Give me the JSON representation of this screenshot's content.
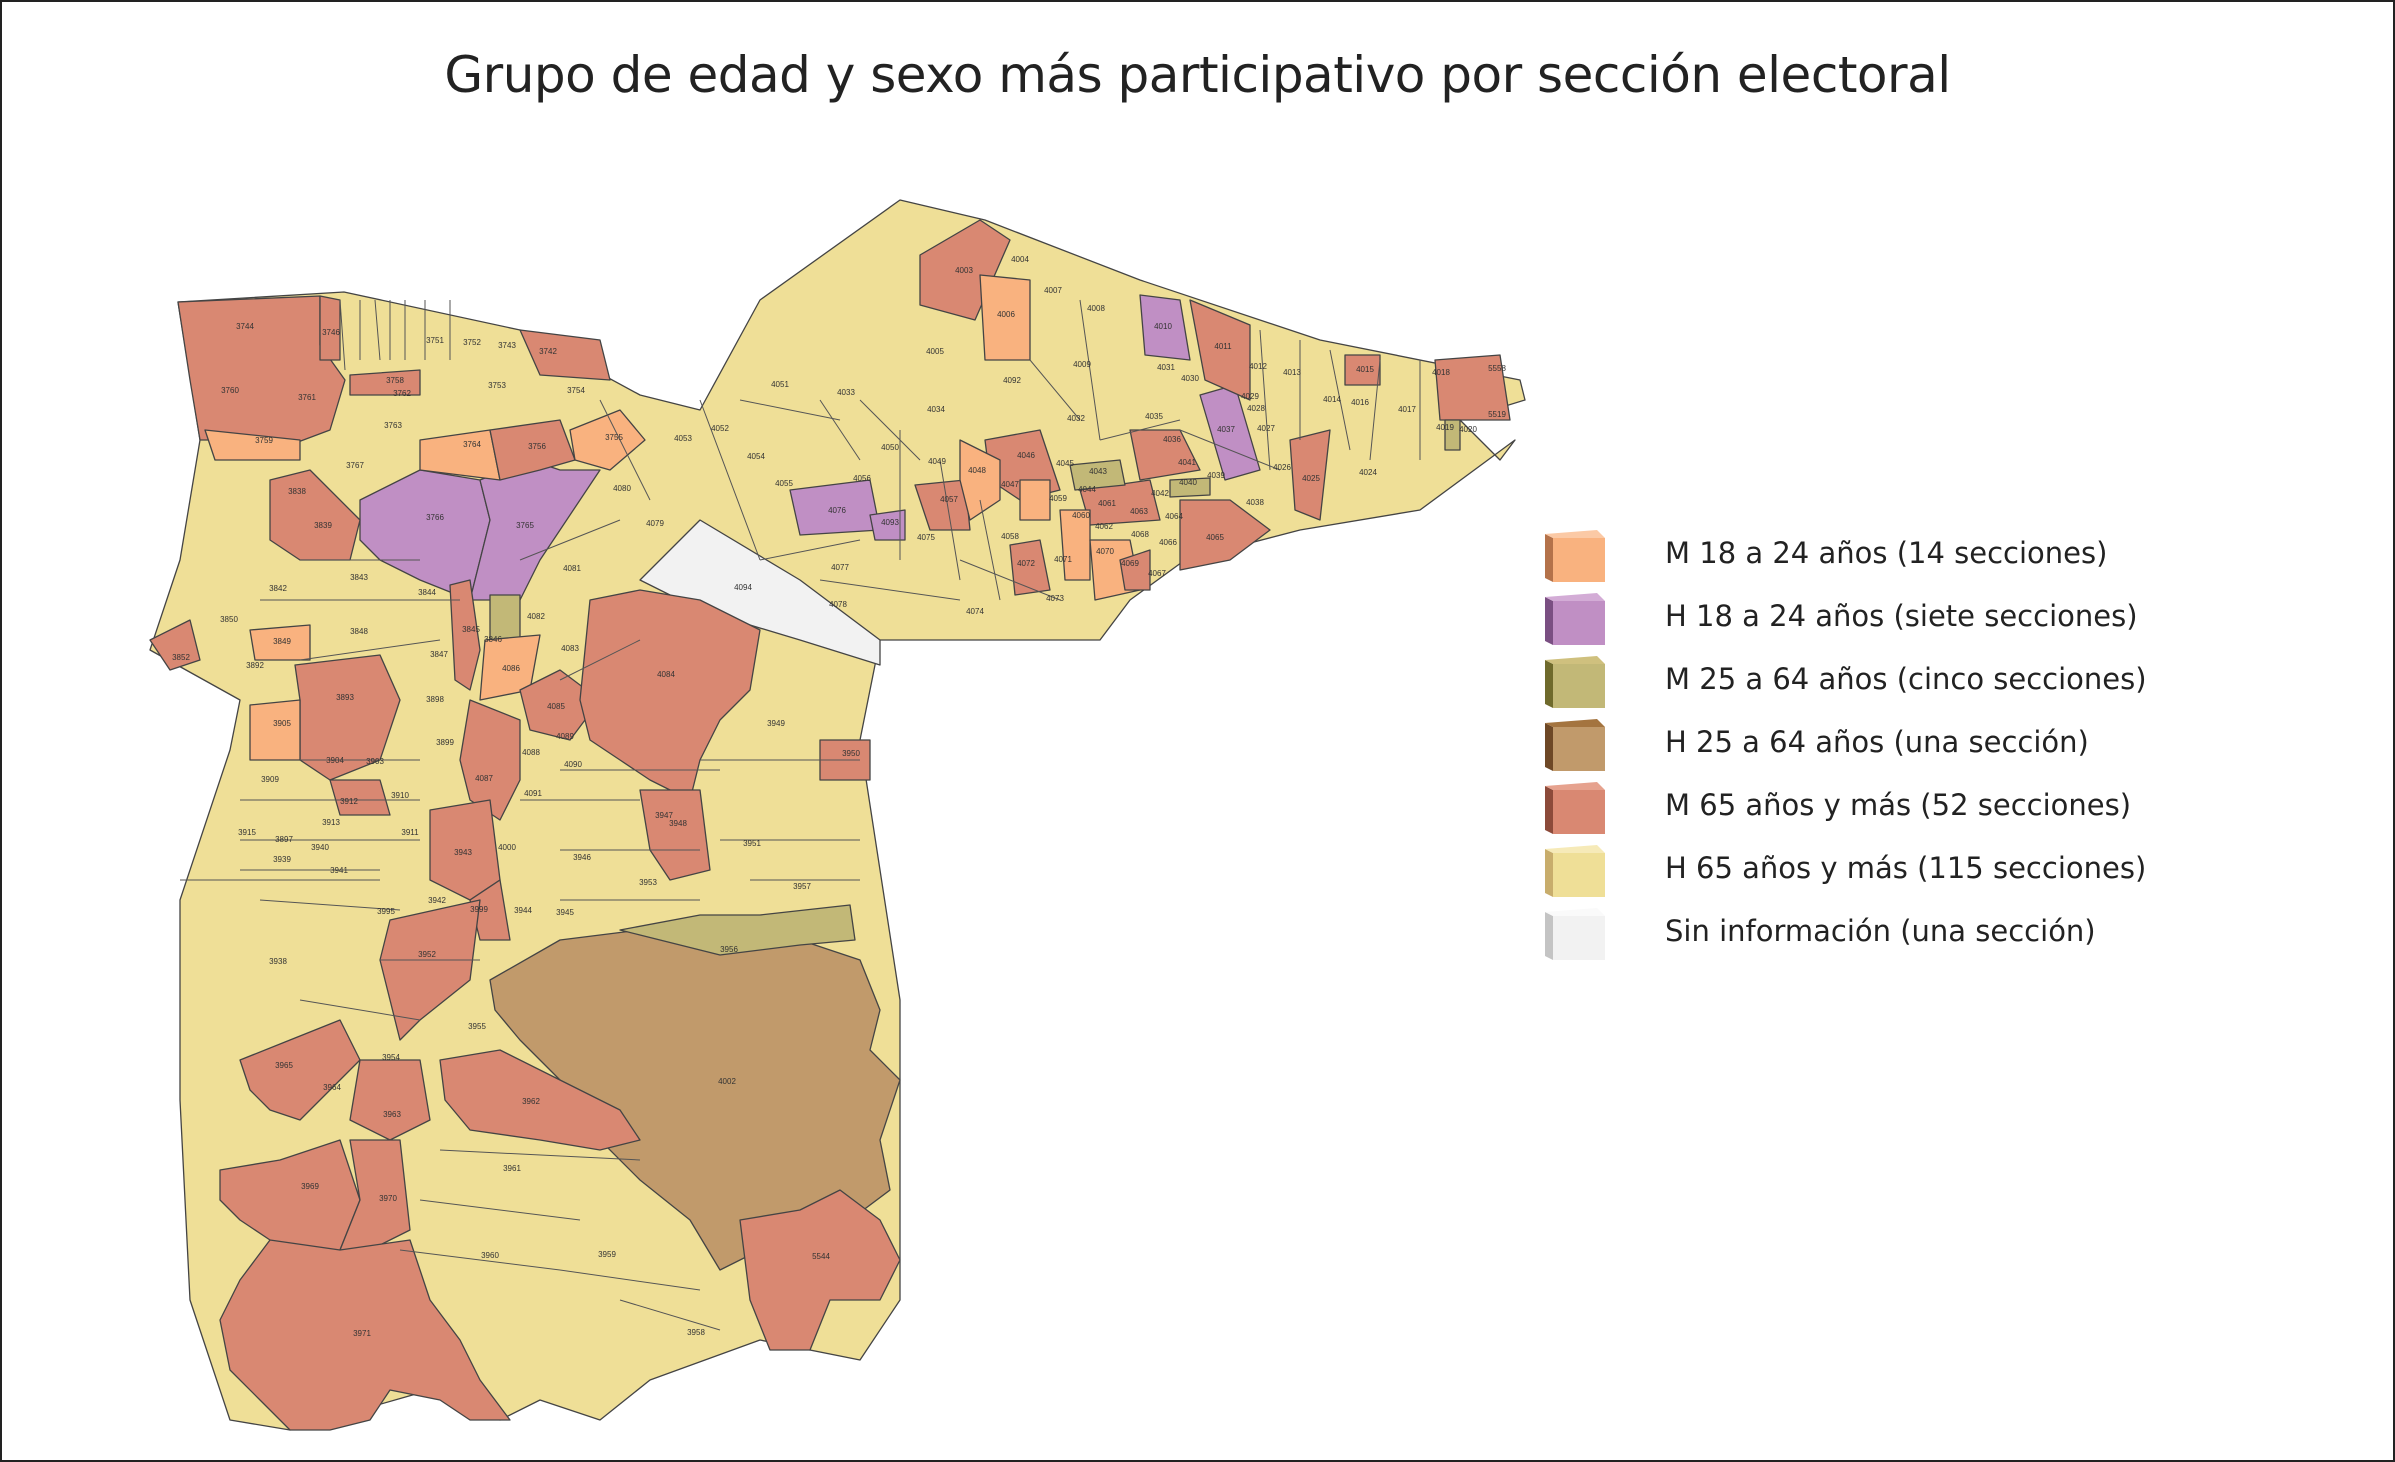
{
  "title": "Grupo de edad y sexo más participativo por sección electoral",
  "colors": {
    "m_18_24": "#f9b27f",
    "h_18_24": "#c08fc4",
    "m_25_64": "#c2b877",
    "h_25_64": "#c19a6b",
    "m_65": "#d98872",
    "h_65": "#efdf97",
    "sin_info": "#f2f2f2",
    "border": "#444444"
  },
  "legend": [
    {
      "key": "m_18_24",
      "label": "M 18 a 24 años (14 secciones)",
      "color": "#f9b27f",
      "side": "#b4724a",
      "top": "#fbc9a5"
    },
    {
      "key": "h_18_24",
      "label": "H 18 a 24 años (siete secciones)",
      "color": "#c08fc4",
      "side": "#7a4f82",
      "top": "#d3acd6"
    },
    {
      "key": "m_25_64",
      "label": "M 25 a 64 años (cinco secciones)",
      "color": "#c2b877",
      "side": "#6f6a2c",
      "top": "#cfc07e"
    },
    {
      "key": "h_25_64",
      "label": "H 25 a 64 años (una sección)",
      "color": "#c19a6b",
      "side": "#6e4826",
      "top": "#a4743f"
    },
    {
      "key": "m_65",
      "label": "M 65 años y más (52 secciones)",
      "color": "#d98872",
      "side": "#8c4a3a",
      "top": "#e6a28e"
    },
    {
      "key": "h_65",
      "label": "H 65 años y más (115 secciones)",
      "color": "#efdf97",
      "side": "#c8ad6c",
      "top": "#f6eab8"
    },
    {
      "key": "sin_info",
      "label": "Sin información (una sección)",
      "color": "#f2f2f2",
      "side": "#c4c4c4",
      "top": "#fafafa"
    }
  ],
  "map_labels": [
    {
      "id": "3744",
      "cat": "m_65"
    },
    {
      "id": "3760",
      "cat": "m_65"
    },
    {
      "id": "3761",
      "cat": "m_65"
    },
    {
      "id": "3746",
      "cat": "m_65"
    },
    {
      "id": "3759",
      "cat": "m_18_24"
    },
    {
      "id": "3767",
      "cat": "h_65"
    },
    {
      "id": "3763",
      "cat": "h_65"
    },
    {
      "id": "3762",
      "cat": "h_65"
    },
    {
      "id": "3758",
      "cat": "m_65"
    },
    {
      "id": "3764",
      "cat": "m_18_24"
    },
    {
      "id": "3756",
      "cat": "m_65"
    },
    {
      "id": "3755",
      "cat": "m_18_24"
    },
    {
      "id": "3754",
      "cat": "h_65"
    },
    {
      "id": "3753",
      "cat": "h_65"
    },
    {
      "id": "3742",
      "cat": "m_65"
    },
    {
      "id": "3743",
      "cat": "h_65"
    },
    {
      "id": "3752",
      "cat": "h_65"
    },
    {
      "id": "3751",
      "cat": "h_65"
    },
    {
      "id": "3766",
      "cat": "h_18_24"
    },
    {
      "id": "3765",
      "cat": "h_18_24"
    },
    {
      "id": "3838",
      "cat": "m_65"
    },
    {
      "id": "3839",
      "cat": "m_65"
    },
    {
      "id": "3842",
      "cat": "h_65"
    },
    {
      "id": "3843",
      "cat": "h_65"
    },
    {
      "id": "3844",
      "cat": "h_65"
    },
    {
      "id": "3848",
      "cat": "h_65"
    },
    {
      "id": "3849",
      "cat": "m_18_24"
    },
    {
      "id": "3850",
      "cat": "h_65"
    },
    {
      "id": "3852",
      "cat": "m_65"
    },
    {
      "id": "3892",
      "cat": "h_65"
    },
    {
      "id": "3845",
      "cat": "m_65"
    },
    {
      "id": "3846",
      "cat": "m_25_64"
    },
    {
      "id": "3847",
      "cat": "h_65"
    },
    {
      "id": "3893",
      "cat": "m_65"
    },
    {
      "id": "3898",
      "cat": "h_65"
    },
    {
      "id": "3899",
      "cat": "h_65"
    },
    {
      "id": "3905",
      "cat": "m_18_24"
    },
    {
      "id": "3904",
      "cat": "h_65"
    },
    {
      "id": "3903",
      "cat": "m_65"
    },
    {
      "id": "3909",
      "cat": "h_65"
    },
    {
      "id": "3912",
      "cat": "m_65"
    },
    {
      "id": "3910",
      "cat": "h_65"
    },
    {
      "id": "3913",
      "cat": "h_65"
    },
    {
      "id": "3911",
      "cat": "h_65"
    },
    {
      "id": "3915",
      "cat": "h_65"
    },
    {
      "id": "3897",
      "cat": "h_65"
    },
    {
      "id": "3939",
      "cat": "h_65"
    },
    {
      "id": "3940",
      "cat": "h_65"
    },
    {
      "id": "3941",
      "cat": "h_65"
    },
    {
      "id": "3938",
      "cat": "h_65"
    },
    {
      "id": "3995",
      "cat": "h_65"
    },
    {
      "id": "3942",
      "cat": "h_65"
    },
    {
      "id": "3943",
      "cat": "m_65"
    },
    {
      "id": "3999",
      "cat": "m_65"
    },
    {
      "id": "3952",
      "cat": "m_65"
    },
    {
      "id": "3954",
      "cat": "h_65"
    },
    {
      "id": "3955",
      "cat": "h_65"
    },
    {
      "id": "3965",
      "cat": "m_65"
    },
    {
      "id": "3964",
      "cat": "m_65"
    },
    {
      "id": "3963",
      "cat": "m_65"
    },
    {
      "id": "3962",
      "cat": "m_65"
    },
    {
      "id": "3969",
      "cat": "m_65"
    },
    {
      "id": "3970",
      "cat": "m_65"
    },
    {
      "id": "3961",
      "cat": "h_65"
    },
    {
      "id": "3960",
      "cat": "h_65"
    },
    {
      "id": "3959",
      "cat": "h_65"
    },
    {
      "id": "3971",
      "cat": "m_65"
    },
    {
      "id": "3958",
      "cat": "h_65"
    },
    {
      "id": "5544",
      "cat": "m_65"
    },
    {
      "id": "4002",
      "cat": "h_25_64"
    },
    {
      "id": "3956",
      "cat": "m_25_64"
    },
    {
      "id": "3957",
      "cat": "h_65"
    },
    {
      "id": "3951",
      "cat": "h_65"
    },
    {
      "id": "3949",
      "cat": "h_65"
    },
    {
      "id": "3950",
      "cat": "m_65"
    },
    {
      "id": "4084",
      "cat": "m_65"
    },
    {
      "id": "3947",
      "cat": "h_65"
    },
    {
      "id": "3948",
      "cat": "m_65"
    },
    {
      "id": "3946",
      "cat": "h_65"
    },
    {
      "id": "3953",
      "cat": "h_65"
    },
    {
      "id": "3945",
      "cat": "h_65"
    },
    {
      "id": "3944",
      "cat": "h_65"
    },
    {
      "id": "4000",
      "cat": "h_65"
    },
    {
      "id": "4091",
      "cat": "h_65"
    },
    {
      "id": "4087",
      "cat": "m_65"
    },
    {
      "id": "4088",
      "cat": "h_65"
    },
    {
      "id": "4089",
      "cat": "h_65"
    },
    {
      "id": "4090",
      "cat": "h_65"
    },
    {
      "id": "4085",
      "cat": "m_65"
    },
    {
      "id": "4086",
      "cat": "m_18_24"
    },
    {
      "id": "4083",
      "cat": "h_65"
    },
    {
      "id": "4082",
      "cat": "h_65"
    },
    {
      "id": "4081",
      "cat": "h_65"
    },
    {
      "id": "4079",
      "cat": "h_65"
    },
    {
      "id": "4080",
      "cat": "h_65"
    },
    {
      "id": "4094",
      "cat": "sin_info"
    },
    {
      "id": "4053",
      "cat": "h_65"
    },
    {
      "id": "4052",
      "cat": "h_65"
    },
    {
      "id": "4054",
      "cat": "h_65"
    },
    {
      "id": "4055",
      "cat": "h_65"
    },
    {
      "id": "4051",
      "cat": "h_65"
    },
    {
      "id": "4033",
      "cat": "h_65"
    },
    {
      "id": "4034",
      "cat": "h_65"
    },
    {
      "id": "4050",
      "cat": "h_65"
    },
    {
      "id": "4056",
      "cat": "h_65"
    },
    {
      "id": "4076",
      "cat": "h_18_24"
    },
    {
      "id": "4093",
      "cat": "h_18_24"
    },
    {
      "id": "4075",
      "cat": "h_65"
    },
    {
      "id": "4077",
      "cat": "h_65"
    },
    {
      "id": "4078",
      "cat": "h_65"
    },
    {
      "id": "4074",
      "cat": "h_65"
    },
    {
      "id": "4073",
      "cat": "h_65"
    },
    {
      "id": "4003",
      "cat": "m_65"
    },
    {
      "id": "4004",
      "cat": "h_65"
    },
    {
      "id": "4006",
      "cat": "m_18_24"
    },
    {
      "id": "4005",
      "cat": "h_65"
    },
    {
      "id": "4007",
      "cat": "h_65"
    },
    {
      "id": "4008",
      "cat": "h_65"
    },
    {
      "id": "4009",
      "cat": "h_65"
    },
    {
      "id": "4092",
      "cat": "h_65"
    },
    {
      "id": "4032",
      "cat": "h_65"
    },
    {
      "id": "4010",
      "cat": "h_18_24"
    },
    {
      "id": "4011",
      "cat": "m_65"
    },
    {
      "id": "4031",
      "cat": "h_65"
    },
    {
      "id": "4030",
      "cat": "h_65"
    },
    {
      "id": "4035",
      "cat": "h_65"
    },
    {
      "id": "4036",
      "cat": "m_65"
    },
    {
      "id": "4037",
      "cat": "h_18_24"
    },
    {
      "id": "4012",
      "cat": "h_65"
    },
    {
      "id": "4013",
      "cat": "h_65"
    },
    {
      "id": "4029",
      "cat": "h_65"
    },
    {
      "id": "4028",
      "cat": "h_65"
    },
    {
      "id": "4027",
      "cat": "h_65"
    },
    {
      "id": "4014",
      "cat": "h_65"
    },
    {
      "id": "4015",
      "cat": "m_65"
    },
    {
      "id": "4016",
      "cat": "h_65"
    },
    {
      "id": "4017",
      "cat": "h_65"
    },
    {
      "id": "4018",
      "cat": "m_65"
    },
    {
      "id": "4019",
      "cat": "m_25_64"
    },
    {
      "id": "4020",
      "cat": "h_65"
    },
    {
      "id": "5558",
      "cat": "m_65"
    },
    {
      "id": "5519",
      "cat": "h_65"
    },
    {
      "id": "4024",
      "cat": "h_65"
    },
    {
      "id": "4025",
      "cat": "m_65"
    },
    {
      "id": "4026",
      "cat": "h_65"
    },
    {
      "id": "4038",
      "cat": "h_65"
    },
    {
      "id": "4039",
      "cat": "h_65"
    },
    {
      "id": "4040",
      "cat": "m_25_64"
    },
    {
      "id": "4041",
      "cat": "h_65"
    },
    {
      "id": "4042",
      "cat": "h_65"
    },
    {
      "id": "4043",
      "cat": "m_25_64"
    },
    {
      "id": "4044",
      "cat": "h_65"
    },
    {
      "id": "4045",
      "cat": "h_65"
    },
    {
      "id": "4046",
      "cat": "m_65"
    },
    {
      "id": "4047",
      "cat": "m_18_24"
    },
    {
      "id": "4048",
      "cat": "m_65"
    },
    {
      "id": "4049",
      "cat": "h_65"
    },
    {
      "id": "4057",
      "cat": "m_65"
    },
    {
      "id": "4058",
      "cat": "h_65"
    },
    {
      "id": "4059",
      "cat": "h_65"
    },
    {
      "id": "4060",
      "cat": "m_65"
    },
    {
      "id": "4061",
      "cat": "m_65"
    },
    {
      "id": "4062",
      "cat": "h_65"
    },
    {
      "id": "4063",
      "cat": "m_65"
    },
    {
      "id": "4064",
      "cat": "h_65"
    },
    {
      "id": "4065",
      "cat": "m_65"
    },
    {
      "id": "4066",
      "cat": "h_65"
    },
    {
      "id": "4067",
      "cat": "h_65"
    },
    {
      "id": "4068",
      "cat": "h_65"
    },
    {
      "id": "4069",
      "cat": "m_65"
    },
    {
      "id": "4070",
      "cat": "m_18_24"
    },
    {
      "id": "4071",
      "cat": "h_65"
    },
    {
      "id": "4072",
      "cat": "m_65"
    }
  ]
}
